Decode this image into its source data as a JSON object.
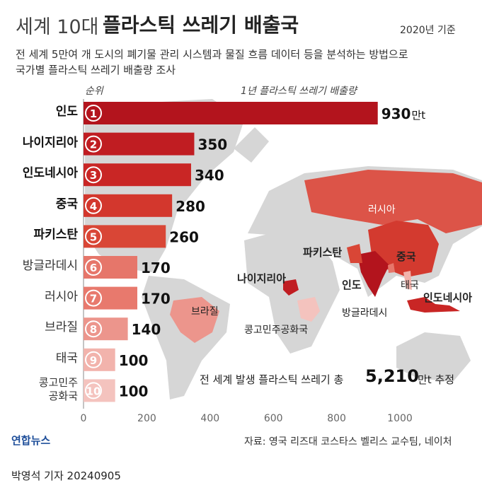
{
  "chart_data": {
    "type": "bar",
    "title": [
      "세계 10대",
      "플라스틱 쓰레기 배출국"
    ],
    "date_note": "2020년 기준",
    "subtitle": [
      "전 세계 5만여 개 도시의 폐기물 관리 시스템과 물질 흐름 데이터 등을 분석하는 방법으로",
      "국가별 플라스틱 쓰레기 배출량 조사"
    ],
    "rank_label": "순위",
    "value_label": "1년 플라스틱 쓰레기 배출량",
    "unit": "만t",
    "categories": [
      "인도",
      "나이지리아",
      "인도네시아",
      "중국",
      "파키스탄",
      "방글라데시",
      "러시아",
      "브라질",
      "태국",
      "콩고민주\n공화국"
    ],
    "ranks": [
      1,
      2,
      3,
      4,
      5,
      6,
      7,
      8,
      9,
      10
    ],
    "values": [
      930,
      350,
      340,
      280,
      260,
      170,
      170,
      140,
      100,
      100
    ],
    "colors": [
      "#b3141d",
      "#c01d22",
      "#c92625",
      "#d3372d",
      "#d94636",
      "#e6766a",
      "#e8796d",
      "#ec958c",
      "#f2b3ac",
      "#f4c3be"
    ],
    "xlim": [
      0,
      1000
    ],
    "xticks": [
      0,
      200,
      400,
      600,
      800,
      1000
    ],
    "grid": false,
    "map_labels": [
      {
        "text": "러시아",
        "bold": false
      },
      {
        "text": "파키스탄",
        "bold": true
      },
      {
        "text": "중국",
        "bold": true
      },
      {
        "text": "나이지리아",
        "bold": true
      },
      {
        "text": "인도",
        "bold": true
      },
      {
        "text": "태국",
        "bold": false
      },
      {
        "text": "인도네시아",
        "bold": true
      },
      {
        "text": "브라질",
        "bold": false
      },
      {
        "text": "방글라데시",
        "bold": false
      },
      {
        "text": "콩고민주공화국",
        "bold": false
      }
    ],
    "total": {
      "prefix": "전 세계 발생 플라스틱 쓰레기 총",
      "value": 5210,
      "label": "5,210",
      "suffix": "만t 추정"
    },
    "source": "자료: 영국 리즈대 코스타스 벨리스 교수팀, 네이처",
    "logo": "연합뉴스",
    "byline": "박영석 기자 20240905"
  }
}
